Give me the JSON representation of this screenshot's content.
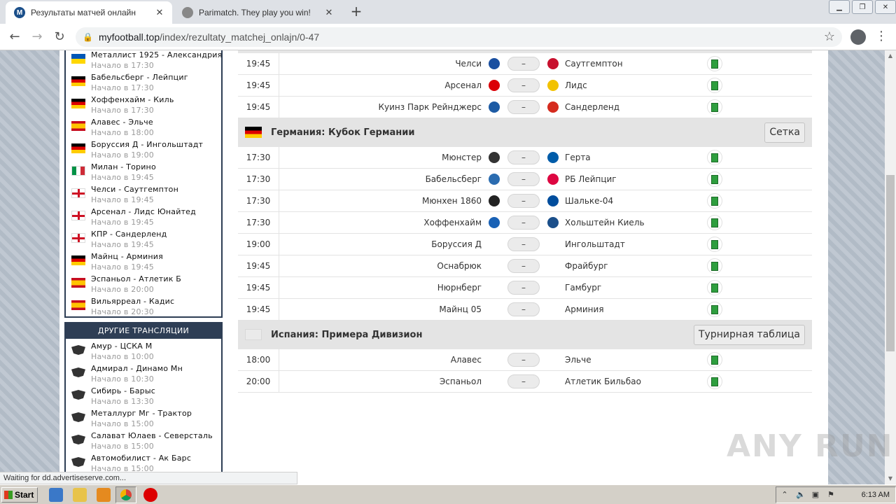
{
  "browser": {
    "tabs": [
      {
        "title": "Результаты матчей онлайн",
        "icon": "myfootball-favicon",
        "close": "✕"
      },
      {
        "title": "Parimatch. They play you win!",
        "icon": "globe-icon",
        "close": "✕"
      }
    ],
    "new_tab": "+",
    "url_host": "myfootball.top",
    "url_path": "/index/rezultaty_matchej_onlajn/0-47"
  },
  "sidebar": {
    "matches": [
      {
        "flag": "ua",
        "title": "Металлист 1925 - Александрия",
        "start": "Начало в 17:30"
      },
      {
        "flag": "de",
        "title": "Бабельсберг - Лейпциг",
        "start": "Начало в 17:30"
      },
      {
        "flag": "de",
        "title": "Хоффенхайм - Киль",
        "start": "Начало в 17:30"
      },
      {
        "flag": "es",
        "title": "Алавес - Эльче",
        "start": "Начало в 18:00"
      },
      {
        "flag": "de",
        "title": "Боруссия Д - Ингольштадт",
        "start": "Начало в 19:00"
      },
      {
        "flag": "it",
        "title": "Милан - Торино",
        "start": "Начало в 19:45"
      },
      {
        "flag": "en",
        "title": "Челси - Саутгемптон",
        "start": "Начало в 19:45"
      },
      {
        "flag": "en",
        "title": "Арсенал - Лидс Юнайтед",
        "start": "Начало в 19:45"
      },
      {
        "flag": "en",
        "title": "КПР - Сандерленд",
        "start": "Начало в 19:45"
      },
      {
        "flag": "de",
        "title": "Майнц - Арминия",
        "start": "Начало в 19:45"
      },
      {
        "flag": "es",
        "title": "Эспаньол - Атлетик Б",
        "start": "Начало в 20:00"
      },
      {
        "flag": "es",
        "title": "Вильярреал - Кадис",
        "start": "Начало в 20:30"
      }
    ],
    "other_header": "ДРУГИЕ ТРАНСЛЯЦИИ",
    "other": [
      {
        "title": "Амур - ЦСКА М",
        "start": "Начало в 10:00"
      },
      {
        "title": "Адмирал - Динамо Мн",
        "start": "Начало в 10:30"
      },
      {
        "title": "Сибирь - Барыс",
        "start": "Начало в 13:30"
      },
      {
        "title": "Металлург Мг - Трактор",
        "start": "Начало в 15:00"
      },
      {
        "title": "Салават Юлаев - Северсталь",
        "start": "Начало в 15:00"
      },
      {
        "title": "Автомобилист - Ак Барс",
        "start": "Начало в 15:00"
      }
    ]
  },
  "leagues": [
    {
      "flag": "",
      "name": "",
      "button": "",
      "matches": [
        {
          "time": "19:45",
          "home": "Челси",
          "away": "Саутгемптон",
          "score": "–",
          "home_logo": "#1a4fa0",
          "away_logo": "#c8102e"
        },
        {
          "time": "19:45",
          "home": "Арсенал",
          "away": "Лидс",
          "score": "–",
          "home_logo": "#db0007",
          "away_logo": "#f2c200"
        },
        {
          "time": "19:45",
          "home": "Куинз Парк Рейнджерс",
          "away": "Сандерленд",
          "score": "–",
          "home_logo": "#1d5ba4",
          "away_logo": "#d52b1e"
        }
      ]
    },
    {
      "flag": "de",
      "name": "Германия:  Кубок Германии",
      "button": "Сетка",
      "matches": [
        {
          "time": "17:30",
          "home": "Мюнстер",
          "away": "Герта",
          "score": "–",
          "home_logo": "#333333",
          "away_logo": "#005ca9"
        },
        {
          "time": "17:30",
          "home": "Бабельсберг",
          "away": "РБ Лейпциг",
          "score": "–",
          "home_logo": "#2b6cb0",
          "away_logo": "#dd0741"
        },
        {
          "time": "17:30",
          "home": "Мюнхен 1860",
          "away": "Шальке-04",
          "score": "–",
          "home_logo": "#222222",
          "away_logo": "#004d9d"
        },
        {
          "time": "17:30",
          "home": "Хоффенхайм",
          "away": "Хольштейн Киель",
          "score": "–",
          "home_logo": "#1961b5",
          "away_logo": "#1b4f8a"
        },
        {
          "time": "19:00",
          "home": "Боруссия Д",
          "away": "Ингольштадт",
          "score": "–",
          "home_logo": "",
          "away_logo": ""
        },
        {
          "time": "19:45",
          "home": "Оснабрюк",
          "away": "Фрайбург",
          "score": "–",
          "home_logo": "",
          "away_logo": ""
        },
        {
          "time": "19:45",
          "home": "Нюрнберг",
          "away": "Гамбург",
          "score": "–",
          "home_logo": "",
          "away_logo": ""
        },
        {
          "time": "19:45",
          "home": "Майнц 05",
          "away": "Арминия",
          "score": "–",
          "home_logo": "",
          "away_logo": ""
        }
      ]
    },
    {
      "flag": "empty",
      "name": "Испания:  Примера Дивизион",
      "button": "Турнирная таблица",
      "matches": [
        {
          "time": "18:00",
          "home": "Алавес",
          "away": "Эльче",
          "score": "–",
          "home_logo": "",
          "away_logo": ""
        },
        {
          "time": "20:00",
          "home": "Эспаньол",
          "away": "Атлетик Бильбао",
          "score": "–",
          "home_logo": "",
          "away_logo": ""
        }
      ]
    }
  ],
  "status_bar": "Waiting for dd.advertiseserve.com...",
  "watermark": "ANY RUN",
  "taskbar": {
    "start": "Start",
    "clock": "6:13 AM"
  }
}
